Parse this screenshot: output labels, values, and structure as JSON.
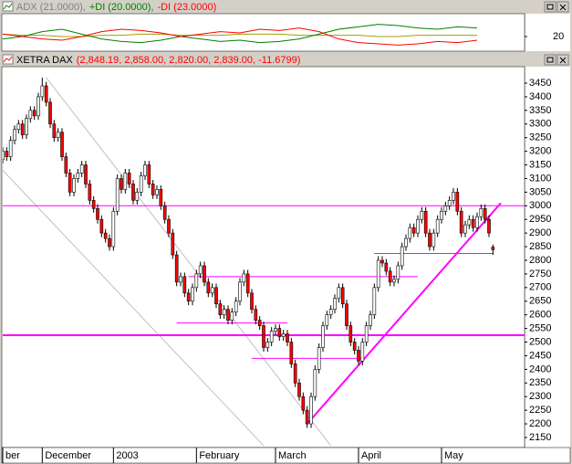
{
  "chart_data": [
    {
      "type": "line",
      "title": [
        {
          "text": "ADX (21.0000),",
          "color": "#808080"
        },
        {
          "text": "+DI (20.0000),",
          "color": "#008000"
        },
        {
          "text": "-DI (23.0000)",
          "color": "#ff0000"
        }
      ],
      "xlim": [
        0,
        132
      ],
      "ylim": [
        8,
        38
      ],
      "yticks": [
        20
      ],
      "x": [
        0,
        5,
        10,
        15,
        20,
        25,
        30,
        35,
        40,
        45,
        50,
        55,
        60,
        65,
        70,
        75,
        80,
        85,
        90,
        95,
        100,
        105,
        110,
        115,
        120
      ],
      "series": [
        {
          "name": "ADX",
          "color": "#a0a000",
          "values": [
            22,
            21,
            21,
            20,
            20,
            21,
            21,
            22,
            22,
            21,
            21,
            21,
            22,
            22,
            22,
            21,
            21,
            21,
            21,
            20,
            20,
            21,
            21,
            21,
            21
          ]
        },
        {
          "name": "+DI",
          "color": "#008000",
          "values": [
            18,
            20,
            24,
            26,
            22,
            18,
            16,
            15,
            17,
            20,
            18,
            16,
            17,
            15,
            16,
            18,
            22,
            26,
            28,
            30,
            29,
            27,
            26,
            28,
            27
          ]
        },
        {
          "name": "-DI",
          "color": "#ff0000",
          "values": [
            22,
            20,
            18,
            17,
            20,
            24,
            26,
            25,
            23,
            20,
            22,
            24,
            23,
            26,
            25,
            27,
            24,
            18,
            15,
            14,
            13,
            14,
            16,
            15,
            17
          ]
        }
      ]
    },
    {
      "type": "candlestick",
      "title": [
        {
          "text": "XETRA DAX",
          "color": "#000000"
        },
        {
          "text": "(2,848.19, 2,858.00, 2,820.00, 2,839.00, -11.6799)",
          "color": "#ff0000"
        }
      ],
      "xlim": [
        0,
        132
      ],
      "ylim": [
        2113,
        3507
      ],
      "yticks": [
        2150,
        2200,
        2250,
        2300,
        2350,
        2400,
        2450,
        2500,
        2550,
        2600,
        2650,
        2700,
        2750,
        2800,
        2850,
        2900,
        2950,
        3000,
        3050,
        3100,
        3150,
        3200,
        3250,
        3300,
        3350,
        3400,
        3450
      ],
      "xticks": [
        {
          "value": 0,
          "label": "ber"
        },
        {
          "value": 10,
          "label": "December"
        },
        {
          "value": 28,
          "label": "2003"
        },
        {
          "value": 49,
          "label": "February"
        },
        {
          "value": 69,
          "label": "March"
        },
        {
          "value": 90,
          "label": "April"
        },
        {
          "value": 111,
          "label": "May"
        }
      ],
      "up_color": "#ffffff",
      "down_color": "#ff0000",
      "ohlc": [
        [
          3170,
          3215,
          3155,
          3200
        ],
        [
          3200,
          3215,
          3165,
          3180
        ],
        [
          3180,
          3255,
          3165,
          3240
        ],
        [
          3240,
          3295,
          3225,
          3280
        ],
        [
          3280,
          3315,
          3265,
          3300
        ],
        [
          3300,
          3315,
          3245,
          3260
        ],
        [
          3260,
          3335,
          3245,
          3320
        ],
        [
          3320,
          3365,
          3305,
          3350
        ],
        [
          3350,
          3365,
          3315,
          3330
        ],
        [
          3330,
          3415,
          3315,
          3400
        ],
        [
          3400,
          3470,
          3385,
          3440
        ],
        [
          3440,
          3455,
          3365,
          3380
        ],
        [
          3380,
          3395,
          3285,
          3300
        ],
        [
          3300,
          3315,
          3235,
          3250
        ],
        [
          3250,
          3285,
          3235,
          3270
        ],
        [
          3270,
          3285,
          3165,
          3180
        ],
        [
          3180,
          3195,
          3105,
          3120
        ],
        [
          3120,
          3135,
          3035,
          3050
        ],
        [
          3050,
          3115,
          3035,
          3100
        ],
        [
          3100,
          3135,
          3085,
          3120
        ],
        [
          3120,
          3165,
          3105,
          3150
        ],
        [
          3150,
          3165,
          3065,
          3080
        ],
        [
          3080,
          3095,
          3005,
          3020
        ],
        [
          3020,
          3035,
          2975,
          2990
        ],
        [
          2990,
          3005,
          2935,
          2950
        ],
        [
          2950,
          2965,
          2885,
          2900
        ],
        [
          2900,
          2915,
          2865,
          2880
        ],
        [
          2880,
          2895,
          2835,
          2850
        ],
        [
          2850,
          2995,
          2835,
          2980
        ],
        [
          2980,
          3115,
          2965,
          3100
        ],
        [
          3100,
          3115,
          3045,
          3060
        ],
        [
          3060,
          3135,
          3045,
          3120
        ],
        [
          3120,
          3135,
          3065,
          3080
        ],
        [
          3080,
          3095,
          3005,
          3020
        ],
        [
          3020,
          3065,
          3005,
          3050
        ],
        [
          3050,
          3125,
          3035,
          3110
        ],
        [
          3110,
          3165,
          3095,
          3150
        ],
        [
          3150,
          3165,
          3065,
          3080
        ],
        [
          3080,
          3095,
          3025,
          3040
        ],
        [
          3040,
          3075,
          3025,
          3060
        ],
        [
          3060,
          3075,
          2985,
          3000
        ],
        [
          3000,
          3015,
          2935,
          2950
        ],
        [
          2950,
          2965,
          2885,
          2900
        ],
        [
          2900,
          2915,
          2805,
          2820
        ],
        [
          2820,
          2835,
          2705,
          2720
        ],
        [
          2720,
          2755,
          2705,
          2740
        ],
        [
          2740,
          2755,
          2665,
          2680
        ],
        [
          2680,
          2695,
          2635,
          2650
        ],
        [
          2650,
          2715,
          2635,
          2700
        ],
        [
          2700,
          2765,
          2685,
          2750
        ],
        [
          2750,
          2795,
          2735,
          2780
        ],
        [
          2780,
          2795,
          2705,
          2720
        ],
        [
          2720,
          2735,
          2665,
          2680
        ],
        [
          2680,
          2715,
          2665,
          2700
        ],
        [
          2700,
          2715,
          2625,
          2640
        ],
        [
          2640,
          2655,
          2585,
          2600
        ],
        [
          2600,
          2635,
          2585,
          2620
        ],
        [
          2620,
          2635,
          2565,
          2580
        ],
        [
          2580,
          2625,
          2565,
          2610
        ],
        [
          2610,
          2665,
          2595,
          2650
        ],
        [
          2650,
          2735,
          2635,
          2720
        ],
        [
          2720,
          2765,
          2705,
          2750
        ],
        [
          2750,
          2765,
          2665,
          2680
        ],
        [
          2680,
          2695,
          2605,
          2620
        ],
        [
          2620,
          2635,
          2565,
          2580
        ],
        [
          2580,
          2595,
          2545,
          2560
        ],
        [
          2560,
          2575,
          2465,
          2480
        ],
        [
          2480,
          2515,
          2465,
          2500
        ],
        [
          2500,
          2555,
          2485,
          2540
        ],
        [
          2540,
          2565,
          2525,
          2550
        ],
        [
          2550,
          2565,
          2505,
          2520
        ],
        [
          2520,
          2545,
          2505,
          2530
        ],
        [
          2530,
          2545,
          2485,
          2500
        ],
        [
          2500,
          2515,
          2405,
          2420
        ],
        [
          2420,
          2435,
          2335,
          2350
        ],
        [
          2350,
          2365,
          2285,
          2300
        ],
        [
          2300,
          2315,
          2235,
          2250
        ],
        [
          2250,
          2265,
          2185,
          2200
        ],
        [
          2200,
          2315,
          2185,
          2300
        ],
        [
          2300,
          2415,
          2285,
          2400
        ],
        [
          2400,
          2495,
          2385,
          2480
        ],
        [
          2480,
          2575,
          2465,
          2560
        ],
        [
          2560,
          2615,
          2545,
          2600
        ],
        [
          2600,
          2635,
          2585,
          2620
        ],
        [
          2620,
          2675,
          2605,
          2660
        ],
        [
          2660,
          2715,
          2645,
          2700
        ],
        [
          2700,
          2715,
          2625,
          2640
        ],
        [
          2640,
          2655,
          2545,
          2560
        ],
        [
          2560,
          2575,
          2485,
          2500
        ],
        [
          2500,
          2515,
          2455,
          2470
        ],
        [
          2470,
          2485,
          2415,
          2430
        ],
        [
          2430,
          2515,
          2415,
          2500
        ],
        [
          2500,
          2575,
          2485,
          2560
        ],
        [
          2560,
          2615,
          2545,
          2600
        ],
        [
          2600,
          2715,
          2585,
          2700
        ],
        [
          2700,
          2815,
          2685,
          2800
        ],
        [
          2800,
          2815,
          2775,
          2790
        ],
        [
          2790,
          2805,
          2745,
          2760
        ],
        [
          2760,
          2775,
          2705,
          2720
        ],
        [
          2720,
          2745,
          2705,
          2730
        ],
        [
          2730,
          2795,
          2715,
          2780
        ],
        [
          2780,
          2865,
          2765,
          2850
        ],
        [
          2850,
          2895,
          2835,
          2880
        ],
        [
          2880,
          2935,
          2865,
          2920
        ],
        [
          2920,
          2935,
          2885,
          2900
        ],
        [
          2900,
          2965,
          2885,
          2950
        ],
        [
          2950,
          2995,
          2935,
          2980
        ],
        [
          2980,
          2995,
          2885,
          2900
        ],
        [
          2900,
          2915,
          2835,
          2850
        ],
        [
          2850,
          2915,
          2835,
          2900
        ],
        [
          2900,
          2965,
          2885,
          2950
        ],
        [
          2950,
          2995,
          2935,
          2980
        ],
        [
          2980,
          3015,
          2965,
          3000
        ],
        [
          3000,
          3035,
          2985,
          3020
        ],
        [
          3020,
          3065,
          3005,
          3050
        ],
        [
          3050,
          3065,
          2965,
          2980
        ],
        [
          2980,
          2995,
          2885,
          2900
        ],
        [
          2900,
          2945,
          2885,
          2930
        ],
        [
          2930,
          2965,
          2915,
          2950
        ],
        [
          2950,
          2965,
          2905,
          2920
        ],
        [
          2920,
          2975,
          2905,
          2960
        ],
        [
          2960,
          3005,
          2945,
          2990
        ],
        [
          2990,
          3005,
          2935,
          2950
        ],
        [
          2950,
          2965,
          2885,
          2900
        ],
        [
          2848.19,
          2858,
          2820,
          2839
        ]
      ],
      "lines": [
        {
          "points": [
            [
              11,
              3470
            ],
            [
              83,
              2120
            ]
          ],
          "color": "#c0c0c0",
          "width": 1
        },
        {
          "points": [
            [
              0,
              3130
            ],
            [
              66,
              2120
            ]
          ],
          "color": "#c0c0c0",
          "width": 1
        },
        {
          "points": [
            [
              0,
              3000
            ],
            [
              132,
              3000
            ]
          ],
          "color": "#ff00ff",
          "width": 1
        },
        {
          "points": [
            [
              0,
              2525
            ],
            [
              132,
              2525
            ]
          ],
          "color": "#ff00ff",
          "width": 2
        },
        {
          "points": [
            [
              47,
              2740
            ],
            [
              105,
              2740
            ]
          ],
          "color": "#ff00ff",
          "width": 1
        },
        {
          "points": [
            [
              44,
              2570
            ],
            [
              72,
              2570
            ]
          ],
          "color": "#ff00ff",
          "width": 1
        },
        {
          "points": [
            [
              63,
              2440
            ],
            [
              91,
              2440
            ]
          ],
          "color": "#ff00ff",
          "width": 1
        },
        {
          "points": [
            [
              94,
              2825
            ],
            [
              124,
              2825
            ]
          ],
          "color": "#ff00ff",
          "width": 1
        },
        {
          "points": [
            [
              77,
              2200
            ],
            [
              126,
              3010
            ]
          ],
          "color": "#ff00ff",
          "width": 2
        }
      ]
    }
  ]
}
